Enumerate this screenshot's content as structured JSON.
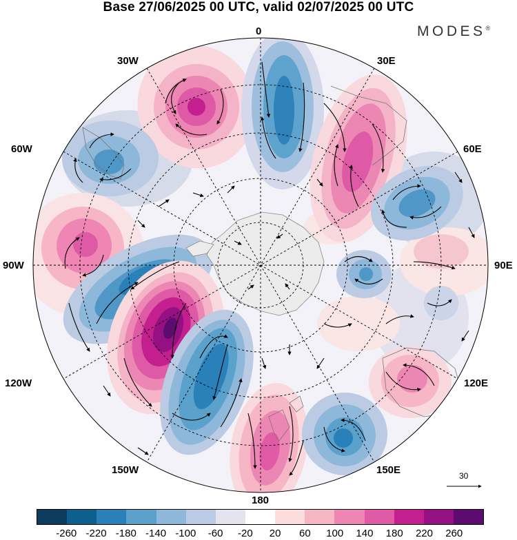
{
  "title": "Base 27/06/2025 00 UTC, valid 02/07/2025 00 UTC",
  "brand": "MODES",
  "brand_mark": "®",
  "longitude_labels": {
    "top": "0",
    "top_left": "30W",
    "top_right": "30E",
    "upper_left": "60W",
    "upper_right": "60E",
    "left": "90W",
    "right": "90E",
    "lower_left": "120W",
    "lower_right": "120E",
    "bottom_left": "150W",
    "bottom_right": "150E",
    "bottom": "180"
  },
  "reference_vector": {
    "label": "30"
  },
  "colorbar": {
    "colors": [
      "#0c3d5e",
      "#0d5f8d",
      "#2a80b9",
      "#5aa1cc",
      "#8db8da",
      "#bccbe4",
      "#e4e4ef",
      "#ffffff",
      "#fbdddd",
      "#f6b6c6",
      "#ef85b2",
      "#e05aa6",
      "#c41f8f",
      "#951183",
      "#5b0c6e"
    ],
    "tick_labels": [
      "-260",
      "-220",
      "-180",
      "-140",
      "-100",
      "-60",
      "-20",
      "20",
      "60",
      "100",
      "140",
      "180",
      "220",
      "260"
    ]
  }
}
